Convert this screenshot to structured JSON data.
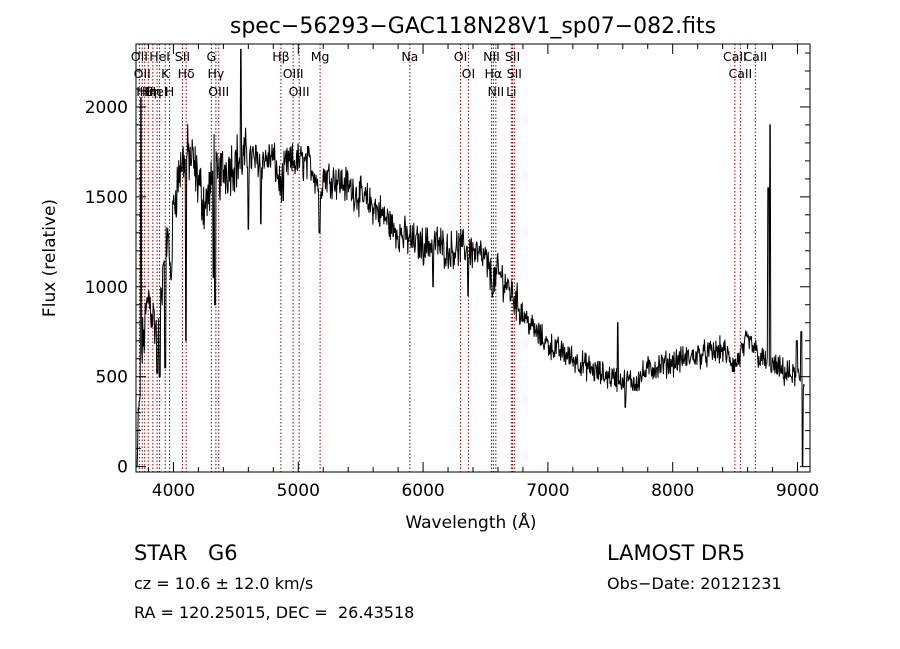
{
  "chart_data": {
    "type": "line",
    "title": "spec−56293−GAC118N28V1_sp07−082.fits",
    "xlabel": "Wavelength (Å)",
    "ylabel": "Flux (relative)",
    "xlim": [
      3700,
      9100
    ],
    "ylim": [
      -30,
      2350
    ],
    "xticks": [
      {
        "value": 4000,
        "label": "4000"
      },
      {
        "value": 5000,
        "label": "5000"
      },
      {
        "value": 6000,
        "label": "6000"
      },
      {
        "value": 7000,
        "label": "7000"
      },
      {
        "value": 8000,
        "label": "8000"
      },
      {
        "value": 9000,
        "label": "9000"
      }
    ],
    "yticks": [
      {
        "value": 0,
        "label": "0"
      },
      {
        "value": 500,
        "label": "500"
      },
      {
        "value": 1000,
        "label": "1000"
      },
      {
        "value": 1500,
        "label": "1500"
      },
      {
        "value": 2000,
        "label": "2000"
      }
    ],
    "grid": false,
    "line_color": "#000000",
    "line_marker_color": "#8b0000",
    "spectrum_envelope": [
      [
        3700,
        0
      ],
      [
        3720,
        250
      ],
      [
        3750,
        650
      ],
      [
        3800,
        950
      ],
      [
        3850,
        800
      ],
      [
        3880,
        700
      ],
      [
        3920,
        1150
      ],
      [
        3950,
        1300
      ],
      [
        3980,
        1050
      ],
      [
        4000,
        1450
      ],
      [
        4050,
        1650
      ],
      [
        4100,
        1750
      ],
      [
        4150,
        1700
      ],
      [
        4200,
        1580
      ],
      [
        4250,
        1450
      ],
      [
        4300,
        1550
      ],
      [
        4350,
        1600
      ],
      [
        4400,
        1650
      ],
      [
        4500,
        1700
      ],
      [
        4600,
        1720
      ],
      [
        4700,
        1700
      ],
      [
        4800,
        1720
      ],
      [
        4861,
        1550
      ],
      [
        4900,
        1680
      ],
      [
        5000,
        1700
      ],
      [
        5100,
        1680
      ],
      [
        5175,
        1550
      ],
      [
        5200,
        1620
      ],
      [
        5300,
        1600
      ],
      [
        5400,
        1560
      ],
      [
        5500,
        1500
      ],
      [
        5600,
        1450
      ],
      [
        5700,
        1380
      ],
      [
        5800,
        1300
      ],
      [
        5900,
        1260
      ],
      [
        6000,
        1230
      ],
      [
        6100,
        1250
      ],
      [
        6200,
        1200
      ],
      [
        6300,
        1220
      ],
      [
        6400,
        1200
      ],
      [
        6500,
        1150
      ],
      [
        6563,
        1020
      ],
      [
        6600,
        1080
      ],
      [
        6700,
        980
      ],
      [
        6800,
        850
      ],
      [
        6900,
        750
      ],
      [
        7000,
        680
      ],
      [
        7100,
        640
      ],
      [
        7200,
        600
      ],
      [
        7300,
        560
      ],
      [
        7400,
        520
      ],
      [
        7500,
        500
      ],
      [
        7600,
        480
      ],
      [
        7700,
        470
      ],
      [
        7800,
        540
      ],
      [
        7900,
        560
      ],
      [
        8000,
        580
      ],
      [
        8100,
        600
      ],
      [
        8200,
        620
      ],
      [
        8300,
        630
      ],
      [
        8400,
        650
      ],
      [
        8498,
        560
      ],
      [
        8542,
        620
      ],
      [
        8600,
        700
      ],
      [
        8662,
        650
      ],
      [
        8700,
        600
      ],
      [
        8800,
        560
      ],
      [
        8900,
        520
      ],
      [
        9000,
        500
      ],
      [
        9050,
        450
      ]
    ],
    "spectrum_spikes": [
      [
        3740,
        2050
      ],
      [
        4330,
        1850
      ],
      [
        4540,
        2320
      ],
      [
        4700,
        1350
      ],
      [
        4880,
        1480
      ],
      [
        5170,
        1300
      ],
      [
        5760,
        1280
      ],
      [
        6080,
        1000
      ],
      [
        7560,
        800
      ],
      [
        8765,
        1550
      ],
      [
        8780,
        1900
      ],
      [
        8995,
        700
      ],
      [
        9030,
        750
      ]
    ],
    "spectrum_dips": [
      [
        3870,
        520
      ],
      [
        3890,
        500
      ],
      [
        3935,
        550
      ],
      [
        4100,
        700
      ],
      [
        4320,
        1050
      ],
      [
        4335,
        900
      ],
      [
        4600,
        1320
      ],
      [
        6360,
        950
      ],
      [
        7620,
        330
      ],
      [
        9040,
        0
      ]
    ],
    "lines": [
      {
        "wavelength": 3727,
        "label": "OII"
      },
      {
        "wavelength": 3750,
        "label": "OII"
      },
      {
        "wavelength": 3770,
        "label": "Hθ"
      },
      {
        "wavelength": 3798,
        "label": "Hη"
      },
      {
        "wavelength": 3835,
        "label": "Hη"
      },
      {
        "wavelength": 3869,
        "label": "HeI"
      },
      {
        "wavelength": 3889,
        "label": "HeI"
      },
      {
        "wavelength": 3934,
        "label": "K"
      },
      {
        "wavelength": 3969,
        "label": "H"
      },
      {
        "wavelength": 4072,
        "label": "SII"
      },
      {
        "wavelength": 4102,
        "label": "Hδ"
      },
      {
        "wavelength": 4304,
        "label": "G"
      },
      {
        "wavelength": 4340,
        "label": "Hγ"
      },
      {
        "wavelength": 4363,
        "label": "OIII"
      },
      {
        "wavelength": 4861,
        "label": "Hβ"
      },
      {
        "wavelength": 4959,
        "label": "OIII"
      },
      {
        "wavelength": 5007,
        "label": "OIII"
      },
      {
        "wavelength": 5175,
        "label": "Mg"
      },
      {
        "wavelength": 5894,
        "label": "Na"
      },
      {
        "wavelength": 6300,
        "label": "OI"
      },
      {
        "wavelength": 6363,
        "label": "OI"
      },
      {
        "wavelength": 6548,
        "label": "NII"
      },
      {
        "wavelength": 6563,
        "label": "Hα"
      },
      {
        "wavelength": 6583,
        "label": "NII"
      },
      {
        "wavelength": 6707,
        "label": "Li"
      },
      {
        "wavelength": 6717,
        "label": "SII"
      },
      {
        "wavelength": 6731,
        "label": "SII"
      },
      {
        "wavelength": 8498,
        "label": "CaII"
      },
      {
        "wavelength": 8542,
        "label": "CaII"
      },
      {
        "wavelength": 8662,
        "label": "CaII"
      }
    ]
  },
  "info": {
    "class_label": "STAR",
    "subclass_label": "G6",
    "survey": "LAMOST DR5",
    "cz": "cz = 10.6 ± 12.0 km/s",
    "obs_date": "Obs−Date: 20121231",
    "radec": "RA = 120.25015, DEC =  26.43518"
  }
}
